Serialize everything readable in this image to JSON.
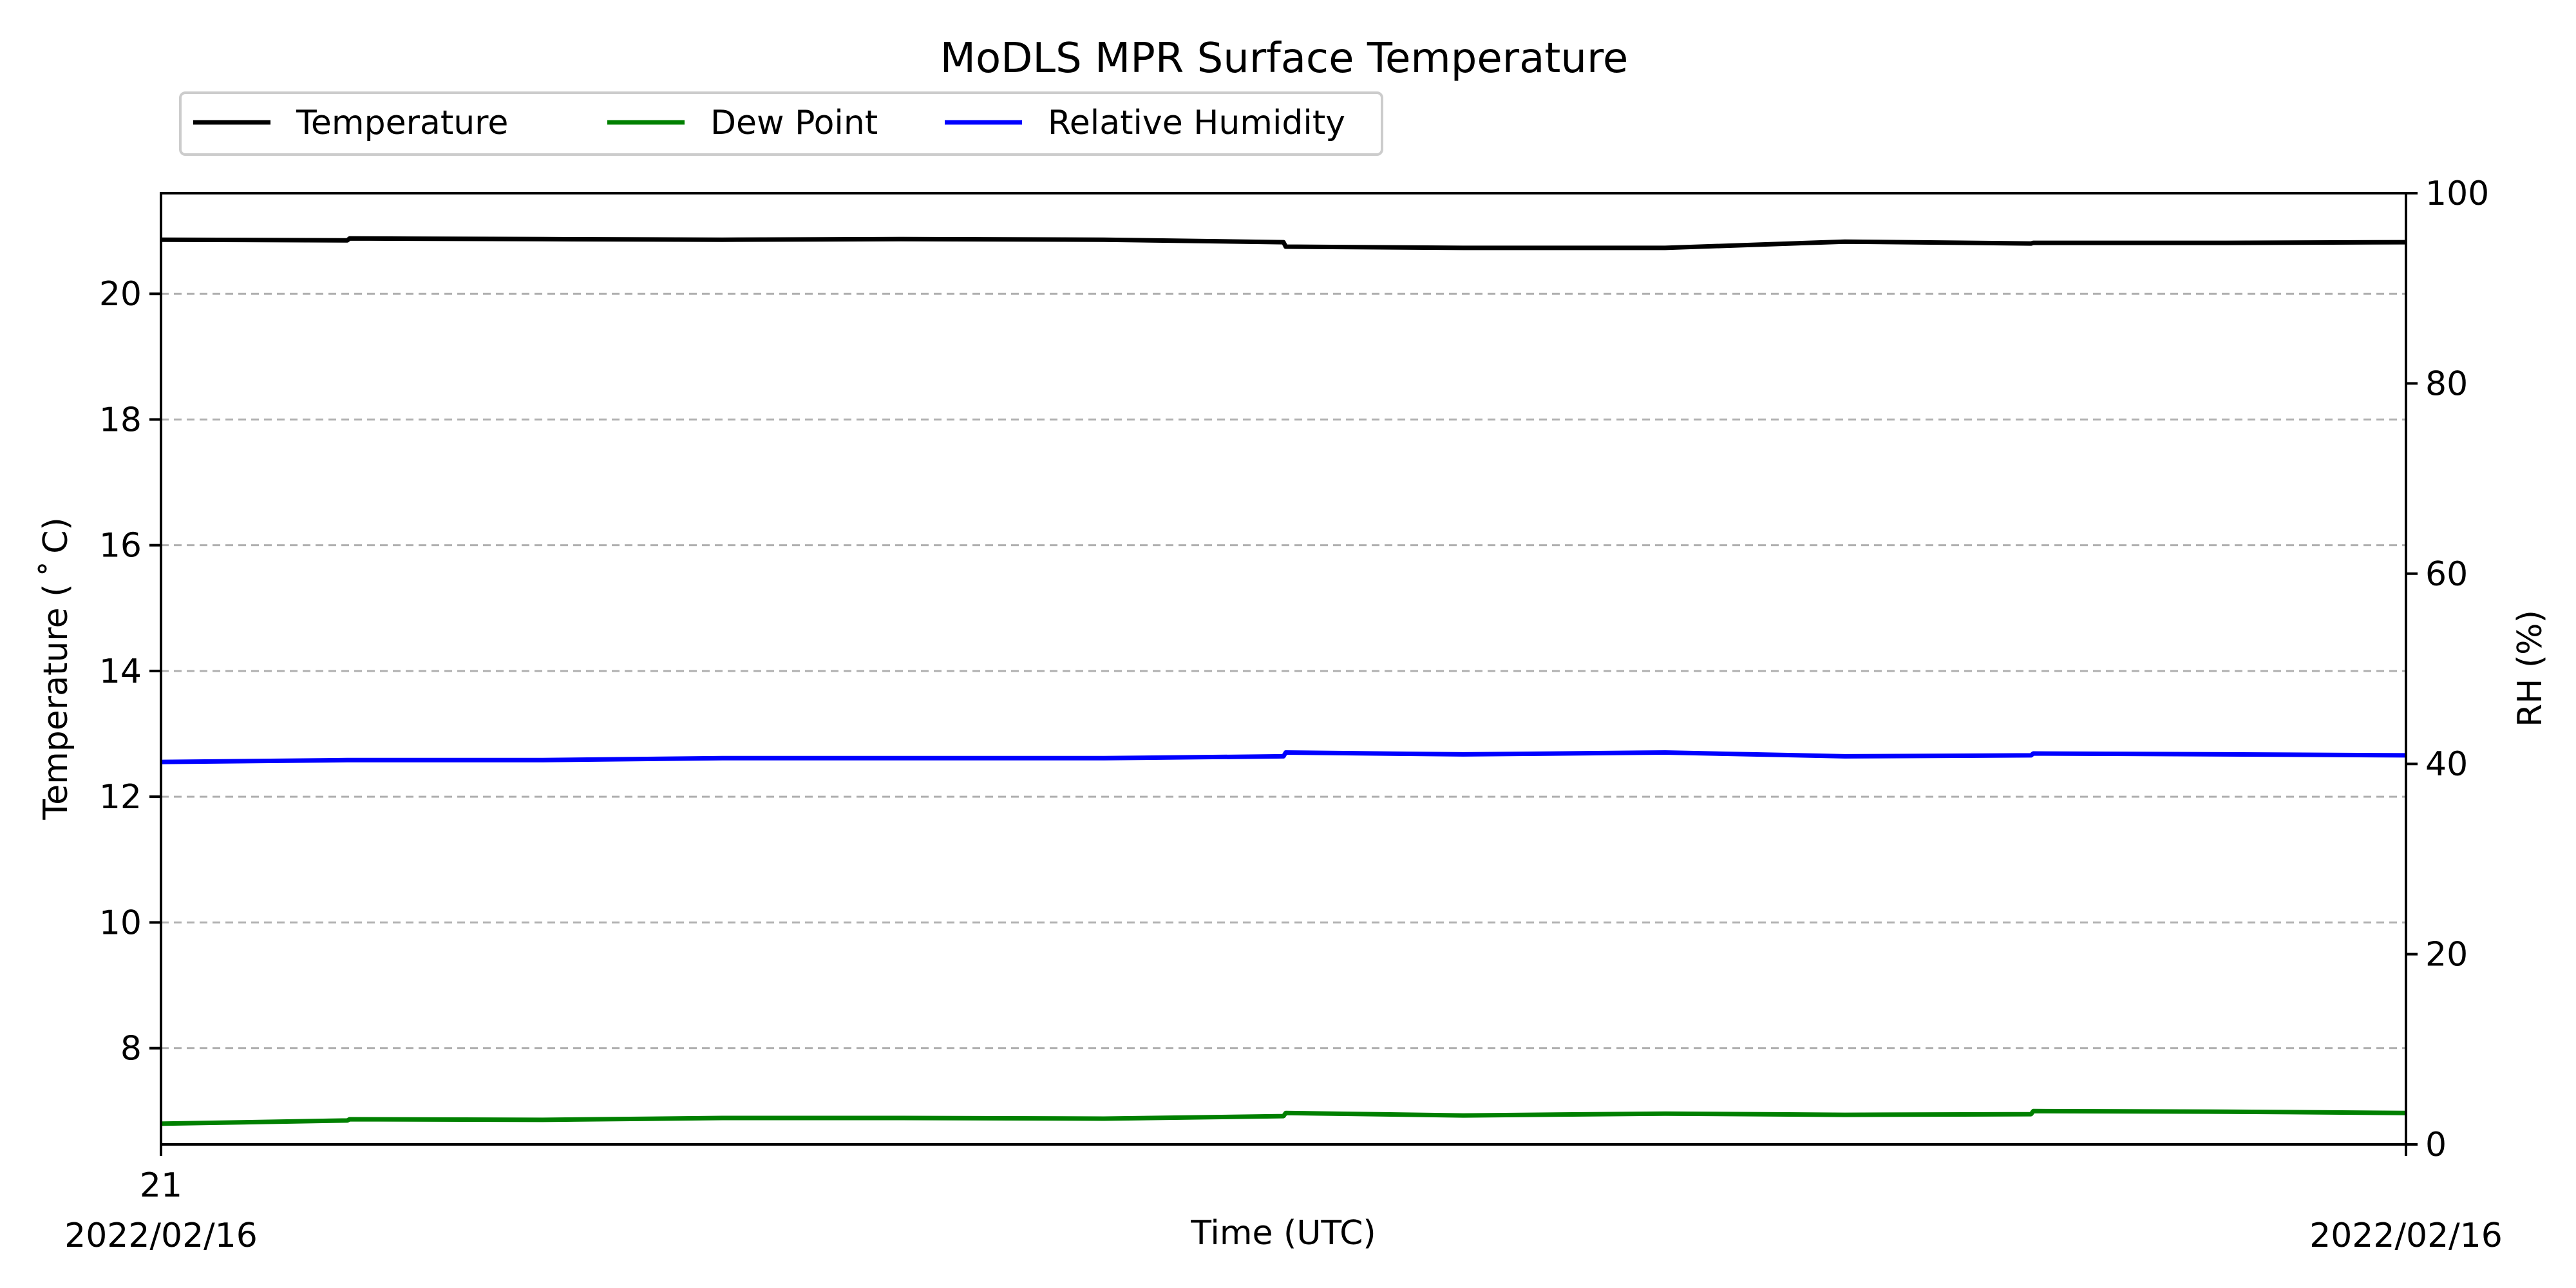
{
  "chart_data": {
    "type": "line",
    "title": "MoDLS MPR Surface Temperature",
    "xlabel": "Time (UTC)",
    "ylabel": "Temperature ($^\\circ$C)",
    "ylabel_display": "Temperature ( ˚ C)",
    "y2label": "RH (%)",
    "ylim": [
      6.47,
      21.6
    ],
    "y2lim": [
      0,
      100
    ],
    "yticks": [
      8,
      10,
      12,
      14,
      16,
      18,
      20
    ],
    "y2ticks": [
      0,
      20,
      40,
      60,
      80,
      100
    ],
    "x_tick_labels": [
      {
        "top": "21",
        "bottom": "2022/02/16",
        "pos": 0
      },
      {
        "top": "",
        "bottom": "2022/02/16",
        "pos": 1
      }
    ],
    "grid": "y-dashed",
    "legend_placement": "top-left",
    "x": [
      0.0,
      0.083,
      0.084,
      0.17,
      0.25,
      0.33,
      0.42,
      0.5,
      0.501,
      0.58,
      0.67,
      0.75,
      0.833,
      0.834,
      0.92,
      1.0
    ],
    "series": [
      {
        "name": "Temperature",
        "axis": "left",
        "color": "#000000",
        "values": [
          20.86,
          20.85,
          20.88,
          20.87,
          20.86,
          20.87,
          20.86,
          20.82,
          20.75,
          20.73,
          20.73,
          20.83,
          20.8,
          20.81,
          20.81,
          20.82
        ]
      },
      {
        "name": "Dew Point",
        "axis": "left",
        "color": "#008000",
        "values": [
          6.8,
          6.85,
          6.87,
          6.86,
          6.89,
          6.89,
          6.88,
          6.92,
          6.97,
          6.93,
          6.96,
          6.94,
          6.95,
          7.0,
          6.99,
          6.97
        ]
      },
      {
        "name": "Relative Humidity",
        "axis": "right",
        "color": "#0000ff",
        "values": [
          40.2,
          40.4,
          40.4,
          40.4,
          40.6,
          40.6,
          40.6,
          40.8,
          41.2,
          41.0,
          41.2,
          40.8,
          40.9,
          41.1,
          41.0,
          40.9
        ]
      }
    ]
  }
}
